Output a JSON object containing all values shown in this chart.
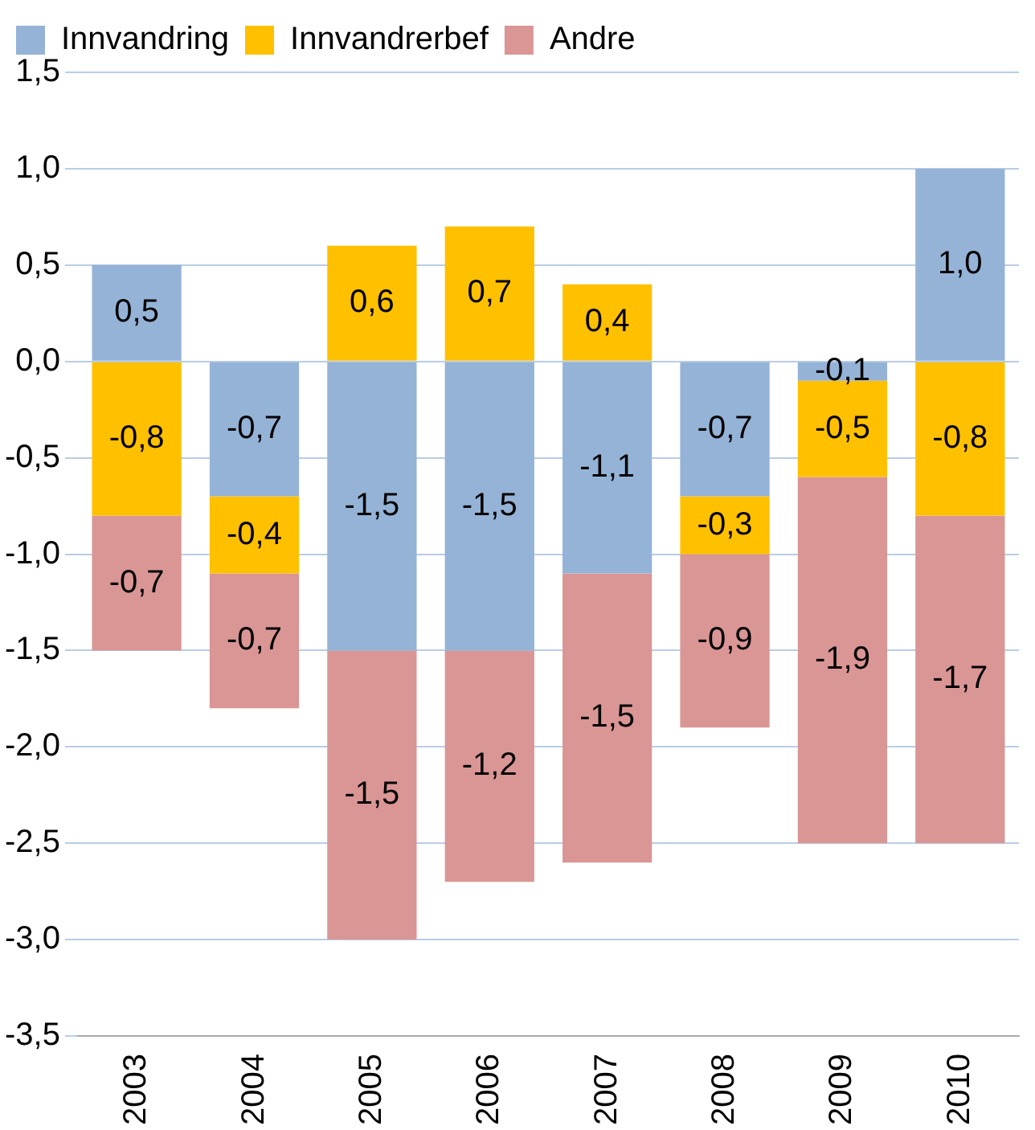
{
  "chart_data": {
    "type": "bar",
    "stacked": true,
    "categories": [
      "2003",
      "2004",
      "2005",
      "2006",
      "2007",
      "2008",
      "2009",
      "2010"
    ],
    "series": [
      {
        "name": "Innvandring",
        "color": "#95b3d7",
        "values": [
          0.5,
          -0.7,
          -1.5,
          -1.5,
          -1.1,
          -0.7,
          -0.1,
          1.0
        ],
        "value_labels": [
          "0,5",
          "-0,7",
          "-1,5",
          "-1,5",
          "-1,1",
          "-0,7",
          "-0,1",
          "1,0"
        ]
      },
      {
        "name": "Innvandrerbef",
        "color": "#ffc000",
        "values": [
          -0.8,
          -0.4,
          0.6,
          0.7,
          0.4,
          -0.3,
          -0.5,
          -0.8
        ],
        "value_labels": [
          "-0,8",
          "-0,4",
          "0,6",
          "0,7",
          "0,4",
          "-0,3",
          "-0,5",
          "-0,8"
        ]
      },
      {
        "name": "Andre",
        "color": "#d99694",
        "values": [
          -0.7,
          -0.7,
          -1.5,
          -1.2,
          -1.5,
          -0.9,
          -1.9,
          -1.7
        ],
        "value_labels": [
          "-0,7",
          "-0,7",
          "-1,5",
          "-1,2",
          "-1,5",
          "-0,9",
          "-1,9",
          "-1,7"
        ]
      }
    ],
    "ylim": [
      -3.5,
      1.5
    ],
    "yticks": [
      {
        "value": -3.5,
        "label": "-3,5"
      },
      {
        "value": -3,
        "label": "-3,0"
      },
      {
        "value": -2.5,
        "label": "-2,5"
      },
      {
        "value": -2,
        "label": "-2,0"
      },
      {
        "value": -1.5,
        "label": "-1,5"
      },
      {
        "value": -1,
        "label": "-1,0"
      },
      {
        "value": -0.5,
        "label": "-0,5"
      },
      {
        "value": 0,
        "label": "0,0"
      },
      {
        "value": 0.5,
        "label": "0,5"
      },
      {
        "value": 1,
        "label": "1,0"
      },
      {
        "value": 1.5,
        "label": "1,5"
      }
    ],
    "grid": "y",
    "legend": "top left"
  }
}
